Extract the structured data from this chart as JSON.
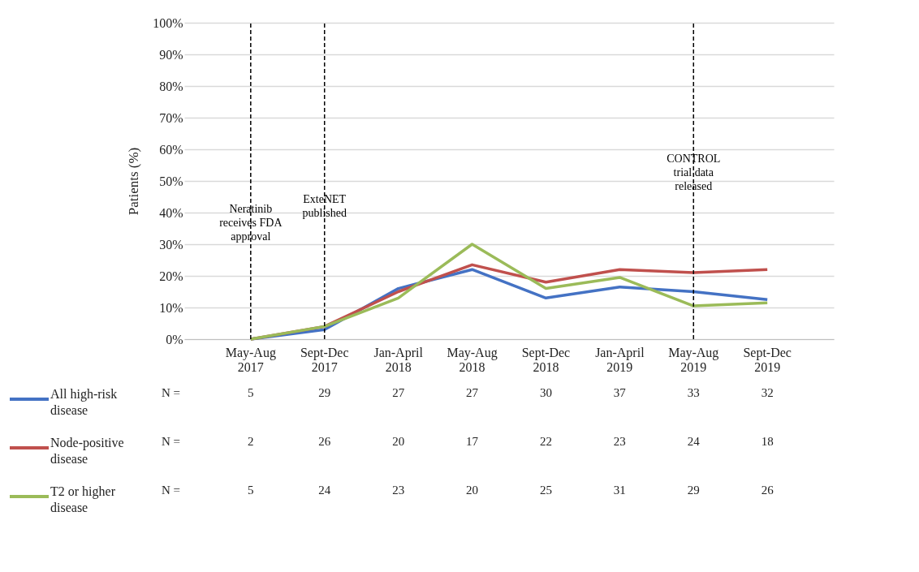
{
  "chart_data": {
    "type": "line",
    "ylabel": "Patients (%)",
    "categories": [
      "May-Aug 2017",
      "Sept-Dec 2017",
      "Jan-April 2018",
      "May-Aug 2018",
      "Sept-Dec 2018",
      "Jan-April 2019",
      "May-Aug 2019",
      "Sept-Dec 2019"
    ],
    "series": [
      {
        "name": "All high-risk disease",
        "color": "#4472c4",
        "values": [
          0,
          3,
          16,
          22,
          13,
          16.5,
          15,
          12.5
        ]
      },
      {
        "name": "Node-positive disease",
        "color": "#c0504d",
        "values": [
          0,
          4,
          15,
          23.5,
          18,
          22,
          21,
          22
        ]
      },
      {
        "name": "T2 or higher disease",
        "color": "#9bbb59",
        "values": [
          0,
          4,
          13,
          30,
          16,
          19.5,
          10.5,
          11.5
        ]
      }
    ],
    "ylim": [
      0,
      100
    ],
    "yticks": [
      {
        "value": 0,
        "label": "0%"
      },
      {
        "value": 10,
        "label": "10%"
      },
      {
        "value": 20,
        "label": "20%"
      },
      {
        "value": 30,
        "label": "30%"
      },
      {
        "value": 40,
        "label": "40%"
      },
      {
        "value": 50,
        "label": "50%"
      },
      {
        "value": 60,
        "label": "60%"
      },
      {
        "value": 70,
        "label": "70%"
      },
      {
        "value": 80,
        "label": "80%"
      },
      {
        "value": 90,
        "label": "90%"
      },
      {
        "value": 100,
        "label": "100%"
      }
    ],
    "grid": "y",
    "legend": "bottom left",
    "line_style": "solid",
    "ref_lines": [
      {
        "axis": "x",
        "value": "May-Aug 2017",
        "label": "Neratinib receives FDA approval",
        "line_style": "dashed",
        "color": "#000000"
      },
      {
        "axis": "x",
        "value": "Sept-Dec 2017",
        "label": "ExteNET published",
        "line_style": "dashed",
        "color": "#000000"
      },
      {
        "axis": "x",
        "value": "May-Aug 2019",
        "label": "CONTROL trial data released",
        "line_style": "dashed",
        "color": "#000000"
      }
    ],
    "annotations": [
      "N =",
      "5",
      "29",
      "27",
      "27",
      "30",
      "37",
      "33",
      "32",
      "N =",
      "2",
      "26",
      "20",
      "17",
      "22",
      "23",
      "24",
      "18",
      "N =",
      "5",
      "24",
      "23",
      "20",
      "25",
      "31",
      "29",
      "26"
    ]
  }
}
